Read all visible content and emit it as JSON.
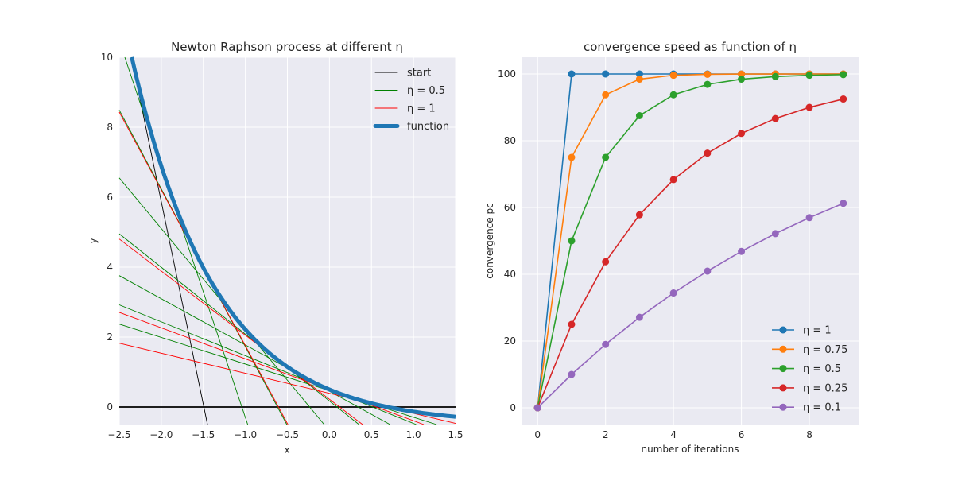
{
  "chart_data": [
    {
      "type": "line",
      "title": "Newton Raphson process at different η",
      "xlabel": "x",
      "ylabel": "y",
      "xlim": [
        -2.5,
        1.5
      ],
      "ylim": [
        -0.5,
        10
      ],
      "xticks": [
        "−2.5",
        "−2.0",
        "−1.5",
        "−1.0",
        "−0.5",
        "0.0",
        "0.5",
        "1.0",
        "1.5"
      ],
      "xtick_values": [
        -2.5,
        -2.0,
        -1.5,
        -1.0,
        -0.5,
        0.0,
        0.5,
        1.0,
        1.5
      ],
      "yticks": [
        "0",
        "2",
        "4",
        "6",
        "8",
        "10"
      ],
      "ytick_values": [
        0,
        2,
        4,
        6,
        8,
        10
      ],
      "grid": true,
      "function": "exp(-x) - 0.5",
      "newton": {
        "start": -2.45,
        "runs": [
          {
            "eta": 0.5,
            "tangents": 7
          },
          {
            "eta": 1,
            "tangents": 4
          }
        ]
      },
      "legend_position": "top-right",
      "legend": [
        {
          "label": "start",
          "color": "#000000"
        },
        {
          "label": "η = 0.5",
          "color": "#008000"
        },
        {
          "label": "η = 1",
          "color": "#ff0000"
        },
        {
          "label": "function",
          "color": "#1f77b4"
        }
      ]
    },
    {
      "type": "line",
      "title": "convergence speed as function of η",
      "xlabel": "number of iterations",
      "ylabel": "convergence pc",
      "xlim": [
        -0.45,
        9.45
      ],
      "ylim": [
        -5,
        105
      ],
      "xticks": [
        "0",
        "2",
        "4",
        "6",
        "8"
      ],
      "xtick_values": [
        0,
        2,
        4,
        6,
        8
      ],
      "yticks": [
        "0",
        "20",
        "40",
        "60",
        "80",
        "100"
      ],
      "ytick_values": [
        0,
        20,
        40,
        60,
        80,
        100
      ],
      "grid": true,
      "legend_position": "bottom-right",
      "x": [
        0,
        1,
        2,
        3,
        4,
        5,
        6,
        7,
        8,
        9
      ],
      "series": [
        {
          "name": "η = 1",
          "color": "#1f77b4",
          "values": [
            0,
            100,
            100,
            100,
            100,
            100,
            100,
            100,
            100,
            100
          ]
        },
        {
          "name": "η = 0.75",
          "color": "#ff7f0e",
          "values": [
            0,
            75,
            93.75,
            98.44,
            99.61,
            99.9,
            99.98,
            99.99,
            100,
            100
          ]
        },
        {
          "name": "η = 0.5",
          "color": "#2ca02c",
          "values": [
            0,
            50,
            75,
            87.5,
            93.75,
            96.88,
            98.44,
            99.22,
            99.61,
            99.8
          ]
        },
        {
          "name": "η = 0.25",
          "color": "#d62728",
          "values": [
            0,
            25,
            43.75,
            57.81,
            68.36,
            76.27,
            82.2,
            86.65,
            89.99,
            92.49
          ]
        },
        {
          "name": "η = 0.1",
          "color": "#9467bd",
          "values": [
            0,
            10,
            19,
            27.1,
            34.39,
            40.95,
            46.86,
            52.17,
            56.95,
            61.26
          ]
        }
      ]
    }
  ]
}
